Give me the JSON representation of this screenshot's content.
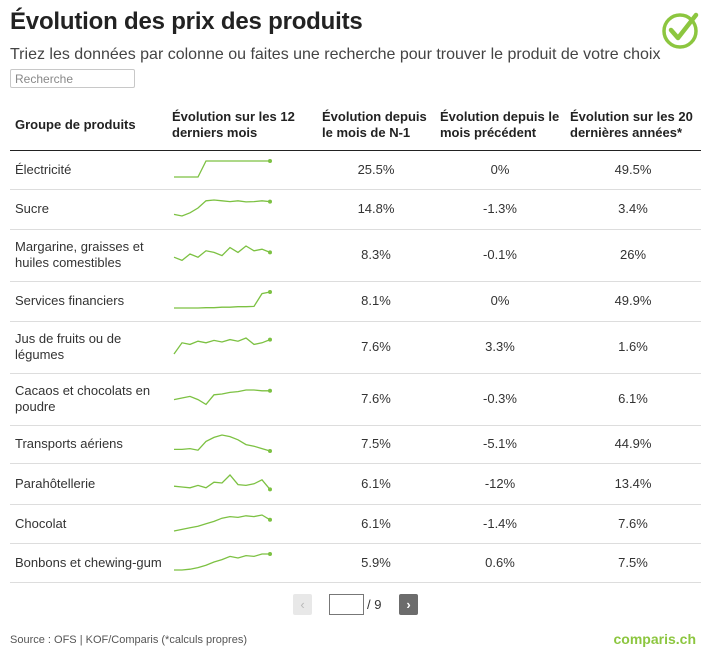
{
  "header": {
    "title": "Évolution des prix des produits",
    "subtitle": "Triez les données par colonne ou faites une recherche pour trouver le produit de votre choix"
  },
  "search": {
    "placeholder": "Recherche",
    "value": ""
  },
  "table": {
    "columns": [
      "Groupe de produits",
      "Évolution sur les 12 derniers mois",
      "Évolution depuis le mois de N-1",
      "Évolution depuis le mois précédent",
      "Évolution sur les 20 dernières années*"
    ],
    "rows": [
      {
        "product": "Électricité",
        "spark": [
          0,
          0,
          0,
          0,
          1,
          1,
          1,
          1,
          1,
          1,
          1,
          1,
          1
        ],
        "yoy": "25.5%",
        "mom": "0%",
        "twenty": "49.5%"
      },
      {
        "product": "Sucre",
        "spark": [
          0.1,
          0,
          0.2,
          0.5,
          0.95,
          1,
          0.95,
          0.9,
          0.95,
          0.88,
          0.9,
          0.95,
          0.9
        ],
        "yoy": "14.8%",
        "mom": "-1.3%",
        "twenty": "3.4%"
      },
      {
        "product": "Margarine, graisses et huiles comestibles",
        "spark": [
          0.3,
          0.1,
          0.5,
          0.3,
          0.7,
          0.6,
          0.4,
          0.9,
          0.6,
          1,
          0.7,
          0.8,
          0.6
        ],
        "yoy": "8.3%",
        "mom": "-0.1%",
        "twenty": "26%"
      },
      {
        "product": "Services financiers",
        "spark": [
          0,
          0,
          0,
          0,
          0.02,
          0.02,
          0.05,
          0.05,
          0.08,
          0.08,
          0.1,
          0.9,
          1
        ],
        "yoy": "8.1%",
        "mom": "0%",
        "twenty": "49.9%"
      },
      {
        "product": "Jus de fruits ou de légumes",
        "spark": [
          0,
          0.7,
          0.6,
          0.8,
          0.7,
          0.85,
          0.75,
          0.9,
          0.8,
          1,
          0.6,
          0.7,
          0.9
        ],
        "yoy": "7.6%",
        "mom": "3.3%",
        "twenty": "1.6%"
      },
      {
        "product": "Cacaos et chocolats en poudre",
        "spark": [
          0.4,
          0.5,
          0.6,
          0.4,
          0.1,
          0.7,
          0.75,
          0.85,
          0.9,
          1,
          1,
          0.95,
          0.95
        ],
        "yoy": "7.6%",
        "mom": "-0.3%",
        "twenty": "6.1%"
      },
      {
        "product": "Transports aériens",
        "spark": [
          0.1,
          0.1,
          0.15,
          0.05,
          0.6,
          0.85,
          1,
          0.9,
          0.7,
          0.4,
          0.3,
          0.15,
          0
        ],
        "yoy": "7.5%",
        "mom": "-5.1%",
        "twenty": "44.9%"
      },
      {
        "product": "Parahôtellerie",
        "spark": [
          0.3,
          0.25,
          0.2,
          0.35,
          0.2,
          0.55,
          0.5,
          1,
          0.4,
          0.35,
          0.45,
          0.7,
          0.1
        ],
        "yoy": "6.1%",
        "mom": "-12%",
        "twenty": "13.4%"
      },
      {
        "product": "Chocolat",
        "spark": [
          0,
          0.1,
          0.2,
          0.3,
          0.45,
          0.6,
          0.8,
          0.9,
          0.85,
          0.95,
          0.9,
          1,
          0.7
        ],
        "yoy": "6.1%",
        "mom": "-1.4%",
        "twenty": "7.6%"
      },
      {
        "product": "Bonbons et chewing-gum",
        "spark": [
          0,
          0,
          0.05,
          0.15,
          0.3,
          0.5,
          0.65,
          0.85,
          0.75,
          0.9,
          0.85,
          1,
          1
        ],
        "yoy": "5.9%",
        "mom": "0.6%",
        "twenty": "7.5%"
      }
    ]
  },
  "pager": {
    "prev_label": "‹",
    "next_label": "›",
    "current_page": "",
    "total": "/ 9"
  },
  "footer": {
    "source": "Source : OFS | KOF/Comparis (*calculs propres)",
    "brand": "comparis.ch"
  },
  "colors": {
    "accent": "#8cc63f",
    "spark": "#7cc142"
  }
}
